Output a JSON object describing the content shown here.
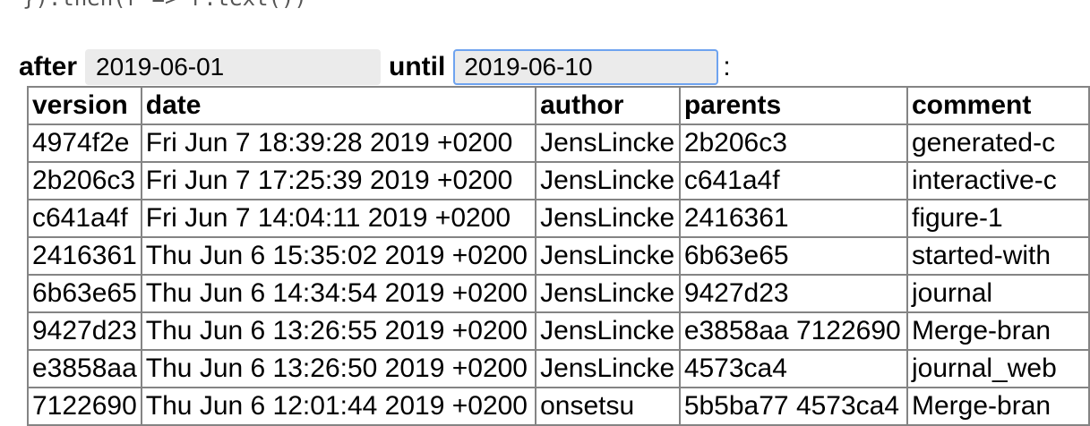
{
  "code_line": "}).then(r => r.text())",
  "filters": {
    "after_label": "after",
    "after_value": "2019-06-01",
    "until_label": "until",
    "until_value": "2019-06-10",
    "separator": ":"
  },
  "colors": {
    "input_background": "#ebebeb",
    "focus_border_blue": "#6ea3ef",
    "table_border_gray": "#848484",
    "code_text_gray": "#555555"
  },
  "table": {
    "columns": [
      "version",
      "date",
      "author",
      "parents",
      "comment"
    ],
    "rows": [
      {
        "version": "4974f2e",
        "date": "Fri Jun 7 18:39:28 2019 +0200",
        "author": "JensLincke",
        "parents": "2b206c3",
        "comment": "generated-c"
      },
      {
        "version": "2b206c3",
        "date": "Fri Jun 7 17:25:39 2019 +0200",
        "author": "JensLincke",
        "parents": "c641a4f",
        "comment": "interactive-c"
      },
      {
        "version": "c641a4f",
        "date": "Fri Jun 7 14:04:11 2019 +0200",
        "author": "JensLincke",
        "parents": "2416361",
        "comment": "figure-1"
      },
      {
        "version": "2416361",
        "date": "Thu Jun 6 15:35:02 2019 +0200",
        "author": "JensLincke",
        "parents": "6b63e65",
        "comment": "started-with"
      },
      {
        "version": "6b63e65",
        "date": "Thu Jun 6 14:34:54 2019 +0200",
        "author": "JensLincke",
        "parents": "9427d23",
        "comment": "journal"
      },
      {
        "version": "9427d23",
        "date": "Thu Jun 6 13:26:55 2019 +0200",
        "author": "JensLincke",
        "parents": "e3858aa 7122690",
        "comment": "Merge-bran"
      },
      {
        "version": "e3858aa",
        "date": "Thu Jun 6 13:26:50 2019 +0200",
        "author": "JensLincke",
        "parents": "4573ca4",
        "comment": "journal_web"
      },
      {
        "version": "7122690",
        "date": "Thu Jun 6 12:01:44 2019 +0200",
        "author": "onsetsu",
        "parents": "5b5ba77 4573ca4",
        "comment": "Merge-bran"
      }
    ]
  }
}
